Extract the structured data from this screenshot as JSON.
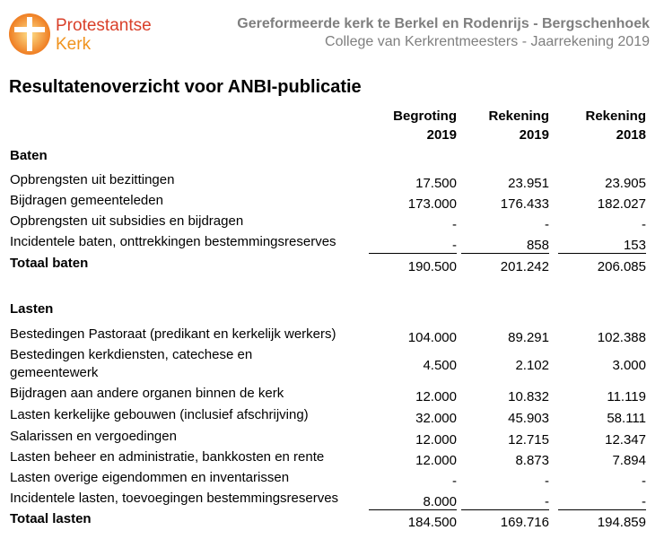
{
  "logo": {
    "line1": "Protestantse",
    "line2": "Kerk"
  },
  "header": {
    "title": "Gereformeerde kerk te Berkel en Rodenrijs - Bergschenhoek",
    "subtitle": "College van Kerkrentmeesters - Jaarrekening 2019"
  },
  "title": "Resultatenoverzicht voor ANBI-publicatie",
  "table": {
    "columns": [
      [
        "Begroting",
        "2019"
      ],
      [
        "Rekening",
        "2019"
      ],
      [
        "Rekening",
        "2018"
      ]
    ],
    "sections": [
      {
        "heading": "Baten",
        "rows": [
          {
            "label": [
              "Opbrengsten uit bezittingen"
            ],
            "values": [
              "17.500",
              "23.951",
              "23.905"
            ]
          },
          {
            "label": [
              "Bijdragen gemeenteleden"
            ],
            "values": [
              "173.000",
              "176.433",
              "182.027"
            ]
          },
          {
            "label": [
              "Opbrengsten uit subsidies en bijdragen"
            ],
            "values": [
              "-",
              "-",
              "-"
            ]
          },
          {
            "label": [
              "Incidentele baten, onttrekkingen bestemmingsreserves"
            ],
            "values": [
              "-",
              "858",
              "153"
            ]
          }
        ],
        "total": {
          "label": "Totaal baten",
          "values": [
            "190.500",
            "201.242",
            "206.085"
          ]
        }
      },
      {
        "heading": "Lasten",
        "rows": [
          {
            "label": [
              "Bestedingen Pastoraat (predikant en kerkelijk werkers)"
            ],
            "values": [
              "104.000",
              "89.291",
              "102.388"
            ]
          },
          {
            "label": [
              "Bestedingen kerkdiensten, catechese en",
              "gemeentewerk"
            ],
            "values": [
              "4.500",
              "2.102",
              "3.000"
            ]
          },
          {
            "label": [
              "Bijdragen aan andere organen binnen de kerk"
            ],
            "values": [
              "12.000",
              "10.832",
              "11.119"
            ]
          },
          {
            "label": [
              "Lasten kerkelijke gebouwen (inclusief afschrijving)"
            ],
            "values": [
              "32.000",
              "45.903",
              "58.111"
            ]
          },
          {
            "label": [
              "Salarissen en vergoedingen"
            ],
            "values": [
              "12.000",
              "12.715",
              "12.347"
            ]
          },
          {
            "label": [
              "Lasten beheer en administratie, bankkosten en rente"
            ],
            "values": [
              "12.000",
              "8.873",
              "7.894"
            ]
          },
          {
            "label": [
              "Lasten overige eigendommen en inventarissen"
            ],
            "values": [
              "-",
              "-",
              "-"
            ]
          },
          {
            "label": [
              "Incidentele lasten, toevoegingen bestemmingsreserves"
            ],
            "values": [
              "8.000",
              "-",
              "-"
            ]
          }
        ],
        "total": {
          "label": "Totaal lasten",
          "values": [
            "184.500",
            "169.716",
            "194.859"
          ]
        }
      }
    ]
  }
}
